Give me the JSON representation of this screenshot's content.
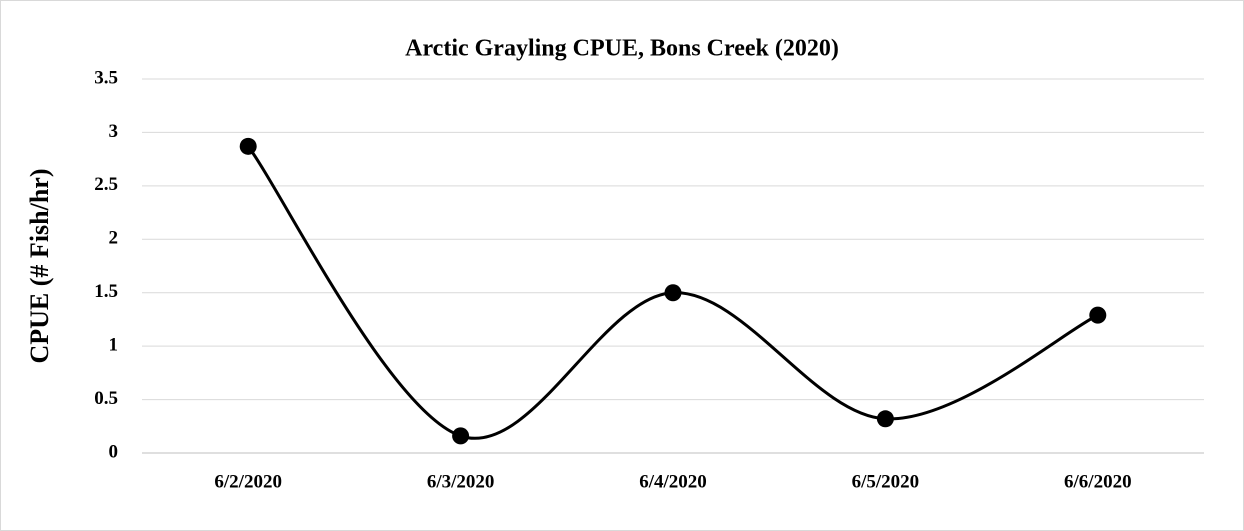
{
  "chart_data": {
    "type": "line",
    "title": "Arctic Grayling CPUE, Bons Creek (2020)",
    "y_label": "CPUE (# Fish/hr)",
    "categories": [
      "6/2/2020",
      "6/3/2020",
      "6/4/2020",
      "6/5/2020",
      "6/6/2020"
    ],
    "series": [
      {
        "name": "CPUE",
        "color": "#000000",
        "values": [
          2.87,
          0.16,
          1.5,
          0.32,
          1.29
        ]
      }
    ],
    "ylim": [
      0,
      3.5
    ],
    "yticks": [
      0,
      0.5,
      1,
      1.5,
      2,
      2.5,
      3,
      3.5
    ],
    "grid": true,
    "smooth": true,
    "markers": true
  }
}
